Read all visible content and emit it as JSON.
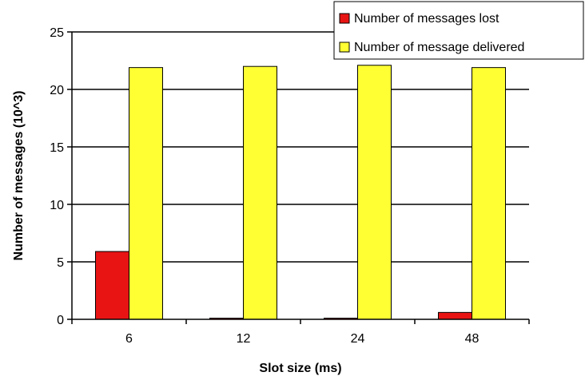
{
  "chart_data": {
    "type": "bar",
    "categories": [
      "6",
      "12",
      "24",
      "48"
    ],
    "series": [
      {
        "name": "Number of messages lost",
        "color": "#e81414",
        "values": [
          5.9,
          0.1,
          0.1,
          0.6
        ]
      },
      {
        "name": "Number of message delivered",
        "color": "#ffff33",
        "values": [
          21.9,
          22.0,
          22.1,
          21.9
        ]
      }
    ],
    "xlabel": "Slot size (ms)",
    "ylabel": "Number of messages (10^3)",
    "ylim": [
      0,
      25
    ],
    "yticks": [
      "0",
      "5",
      "10",
      "15",
      "20",
      "25"
    ],
    "grid": true,
    "legend_position": "top-right"
  }
}
